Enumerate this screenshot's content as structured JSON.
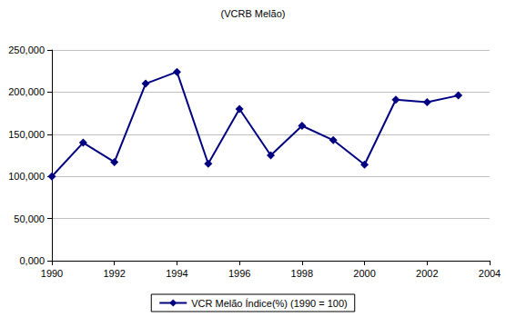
{
  "chart_data": {
    "type": "line",
    "title": "(VCRB Melão)",
    "x": [
      1990,
      1991,
      1992,
      1993,
      1994,
      1995,
      1996,
      1997,
      1998,
      1999,
      2000,
      2001,
      2002,
      2003
    ],
    "series": [
      {
        "name": "VCR Melão Índice(%) (1990 = 100)",
        "color": "#000080",
        "marker": "diamond",
        "line_style": "solid",
        "values": [
          100,
          140,
          117,
          210,
          224,
          115,
          180,
          125,
          160,
          143,
          114,
          191,
          188,
          196
        ]
      }
    ],
    "xlim": [
      1990,
      2004
    ],
    "xticks": [
      1990,
      1992,
      1994,
      1996,
      1998,
      2000,
      2002,
      2004
    ],
    "ylim": [
      0,
      250
    ],
    "yticks": [
      {
        "value": 0,
        "label": "0,000"
      },
      {
        "value": 50,
        "label": "50,000"
      },
      {
        "value": 100,
        "label": "100,000"
      },
      {
        "value": 150,
        "label": "150,000"
      },
      {
        "value": 200,
        "label": "200,000"
      },
      {
        "value": 250,
        "label": "250,000"
      }
    ],
    "grid": true,
    "legend": "bottom"
  }
}
